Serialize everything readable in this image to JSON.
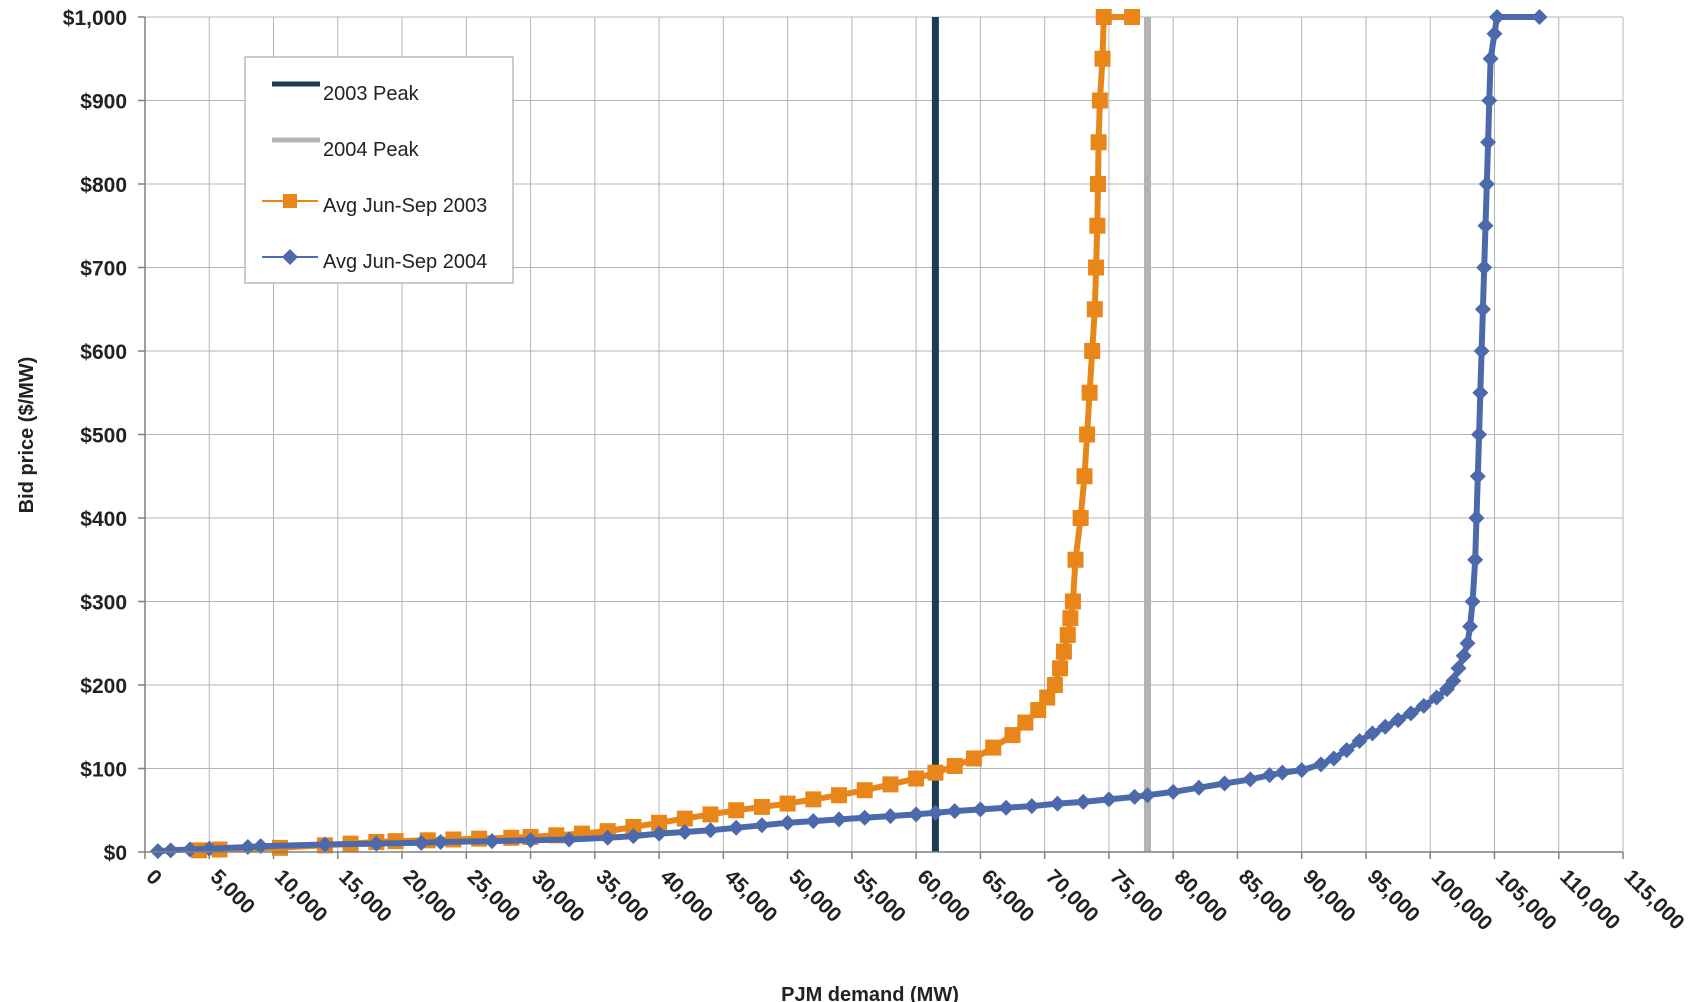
{
  "chart_data": {
    "type": "line",
    "title": "",
    "xlabel": "PJM demand (MW)",
    "ylabel": "Bid price ($/MW)",
    "xlim": [
      0,
      115000
    ],
    "ylim": [
      0,
      1000
    ],
    "grid": true,
    "legend_position": "top-left",
    "x_ticks": [
      0,
      5000,
      10000,
      15000,
      20000,
      25000,
      30000,
      35000,
      40000,
      45000,
      50000,
      55000,
      60000,
      65000,
      70000,
      75000,
      80000,
      85000,
      90000,
      95000,
      100000,
      105000,
      110000,
      115000
    ],
    "x_tick_labels": [
      "0",
      "5,000",
      "10,000",
      "15,000",
      "20,000",
      "25,000",
      "30,000",
      "35,000",
      "40,000",
      "45,000",
      "50,000",
      "55,000",
      "60,000",
      "65,000",
      "70,000",
      "75,000",
      "80,000",
      "85,000",
      "90,000",
      "95,000",
      "100,000",
      "105,000",
      "110,000",
      "115,000"
    ],
    "y_ticks": [
      0,
      100,
      200,
      300,
      400,
      500,
      600,
      700,
      800,
      900,
      1000
    ],
    "y_tick_labels": [
      "$0",
      "$100",
      "$200",
      "$300",
      "$400",
      "$500",
      "$600",
      "$700",
      "$800",
      "$900",
      "$1,000"
    ],
    "vertical_lines": [
      {
        "name": "2003 Peak",
        "x": 61500,
        "color": "#1b3c53"
      },
      {
        "name": "2004 Peak",
        "x": 78000,
        "color": "#b3b3b3"
      }
    ],
    "series": [
      {
        "name": "Avg Jun-Sep 2003",
        "color": "#e8861a",
        "marker": "square",
        "points": [
          [
            4200,
            2
          ],
          [
            5800,
            3
          ],
          [
            10500,
            5
          ],
          [
            14000,
            8
          ],
          [
            16000,
            10
          ],
          [
            18000,
            12
          ],
          [
            19500,
            13
          ],
          [
            22000,
            14
          ],
          [
            24000,
            15
          ],
          [
            26000,
            16
          ],
          [
            28500,
            17
          ],
          [
            30000,
            18
          ],
          [
            32000,
            20
          ],
          [
            34000,
            22
          ],
          [
            36000,
            25
          ],
          [
            38000,
            30
          ],
          [
            40000,
            35
          ],
          [
            42000,
            40
          ],
          [
            44000,
            45
          ],
          [
            46000,
            50
          ],
          [
            48000,
            54
          ],
          [
            50000,
            58
          ],
          [
            52000,
            63
          ],
          [
            54000,
            68
          ],
          [
            56000,
            74
          ],
          [
            58000,
            81
          ],
          [
            60000,
            88
          ],
          [
            61500,
            95
          ],
          [
            63000,
            103
          ],
          [
            64500,
            112
          ],
          [
            66000,
            125
          ],
          [
            67500,
            140
          ],
          [
            68500,
            155
          ],
          [
            69500,
            170
          ],
          [
            70200,
            185
          ],
          [
            70800,
            200
          ],
          [
            71200,
            220
          ],
          [
            71500,
            240
          ],
          [
            71800,
            260
          ],
          [
            72000,
            280
          ],
          [
            72200,
            300
          ],
          [
            72400,
            350
          ],
          [
            72800,
            400
          ],
          [
            73100,
            450
          ],
          [
            73300,
            500
          ],
          [
            73500,
            550
          ],
          [
            73700,
            600
          ],
          [
            73900,
            650
          ],
          [
            74000,
            700
          ],
          [
            74100,
            750
          ],
          [
            74150,
            800
          ],
          [
            74200,
            850
          ],
          [
            74300,
            900
          ],
          [
            74500,
            950
          ],
          [
            74600,
            1000
          ],
          [
            76800,
            1000
          ]
        ]
      },
      {
        "name": "Avg Jun-Sep 2004",
        "color": "#4c6aab",
        "marker": "diamond",
        "points": [
          [
            1000,
            1
          ],
          [
            2000,
            2
          ],
          [
            3500,
            3
          ],
          [
            5000,
            4
          ],
          [
            8000,
            6
          ],
          [
            9000,
            7
          ],
          [
            14000,
            9
          ],
          [
            18000,
            10
          ],
          [
            21500,
            11
          ],
          [
            23000,
            12
          ],
          [
            27000,
            13
          ],
          [
            30000,
            14
          ],
          [
            33000,
            15
          ],
          [
            36000,
            17
          ],
          [
            38000,
            19
          ],
          [
            40000,
            22
          ],
          [
            42000,
            24
          ],
          [
            44000,
            26
          ],
          [
            46000,
            29
          ],
          [
            48000,
            32
          ],
          [
            50000,
            35
          ],
          [
            52000,
            37
          ],
          [
            54000,
            39
          ],
          [
            56000,
            41
          ],
          [
            58000,
            43
          ],
          [
            60000,
            45
          ],
          [
            61500,
            47
          ],
          [
            63000,
            49
          ],
          [
            65000,
            51
          ],
          [
            67000,
            53
          ],
          [
            69000,
            55
          ],
          [
            71000,
            58
          ],
          [
            73000,
            60
          ],
          [
            75000,
            63
          ],
          [
            77000,
            66
          ],
          [
            78000,
            68
          ],
          [
            80000,
            72
          ],
          [
            82000,
            77
          ],
          [
            84000,
            82
          ],
          [
            86000,
            87
          ],
          [
            87500,
            92
          ],
          [
            88500,
            95
          ],
          [
            90000,
            98
          ],
          [
            91500,
            105
          ],
          [
            92500,
            112
          ],
          [
            93500,
            122
          ],
          [
            94500,
            133
          ],
          [
            95500,
            142
          ],
          [
            96500,
            150
          ],
          [
            97500,
            158
          ],
          [
            98500,
            166
          ],
          [
            99500,
            175
          ],
          [
            100500,
            185
          ],
          [
            101300,
            195
          ],
          [
            101800,
            205
          ],
          [
            102200,
            220
          ],
          [
            102600,
            235
          ],
          [
            102900,
            250
          ],
          [
            103100,
            270
          ],
          [
            103300,
            300
          ],
          [
            103500,
            350
          ],
          [
            103600,
            400
          ],
          [
            103700,
            450
          ],
          [
            103800,
            500
          ],
          [
            103900,
            550
          ],
          [
            104000,
            600
          ],
          [
            104100,
            650
          ],
          [
            104200,
            700
          ],
          [
            104300,
            750
          ],
          [
            104400,
            800
          ],
          [
            104500,
            850
          ],
          [
            104600,
            900
          ],
          [
            104700,
            950
          ],
          [
            105000,
            980
          ],
          [
            105200,
            1000
          ],
          [
            108500,
            1000
          ]
        ]
      }
    ]
  }
}
